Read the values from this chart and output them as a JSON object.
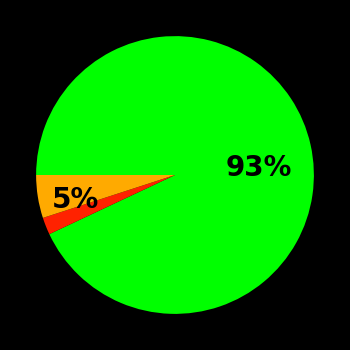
{
  "slices": [
    93,
    2,
    5
  ],
  "colors": [
    "#00ff00",
    "#ff2200",
    "#ffaa00"
  ],
  "labels": [
    "93%",
    "",
    "5%"
  ],
  "background_color": "#000000",
  "startangle": 180,
  "counterclock": false,
  "figsize": [
    3.5,
    3.5
  ],
  "dpi": 100,
  "label_fontsize": 20,
  "label_color": "#000000",
  "label_positions": [
    [
      0.6,
      0.05
    ],
    [
      null,
      null
    ],
    [
      -0.72,
      -0.18
    ]
  ]
}
